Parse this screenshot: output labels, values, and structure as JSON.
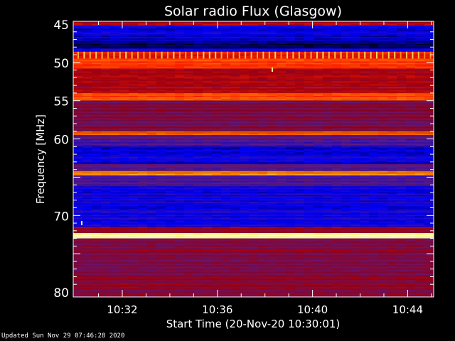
{
  "chart_data": {
    "type": "heatmap",
    "title": "Solar radio Flux (Glasgow)",
    "xlabel": "Start Time (20-Nov-20 10:30:01)",
    "ylabel": "Frequency [MHz]",
    "x_ticks": [
      "10:32",
      "10:36",
      "10:40",
      "10:44"
    ],
    "x_tick_minutes": [
      2,
      6,
      10,
      14
    ],
    "xlim_minutes": [
      0,
      15.2
    ],
    "y_ticks": [
      "45",
      "50",
      "55",
      "60",
      "70",
      "80"
    ],
    "y_tick_values": [
      45,
      50,
      55,
      60,
      70,
      80
    ],
    "ylim": [
      45,
      80
    ],
    "y_inverted": true,
    "colormap": [
      "#000000",
      "#0000ff",
      "#5a1a8c",
      "#a00010",
      "#ff2000",
      "#ff8000",
      "#ffff80",
      "#ffffff"
    ],
    "bands": [
      {
        "f": [
          44.6,
          45.2
        ],
        "level": 0.45
      },
      {
        "f": [
          45.2,
          47.2
        ],
        "level": 0.14
      },
      {
        "f": [
          47.2,
          48.2
        ],
        "level": 0.07
      },
      {
        "f": [
          48.2,
          48.6
        ],
        "level": 0.15
      },
      {
        "f": [
          48.6,
          49.5
        ],
        "level": 0.55,
        "spikes": true
      },
      {
        "f": [
          49.5,
          50.8
        ],
        "level": 0.62
      },
      {
        "f": [
          50.8,
          54.0
        ],
        "level": 0.44
      },
      {
        "f": [
          54.0,
          55.0
        ],
        "level": 0.63
      },
      {
        "f": [
          55.0,
          59.0
        ],
        "level": 0.36
      },
      {
        "f": [
          59.0,
          59.5
        ],
        "level": 0.65
      },
      {
        "f": [
          59.5,
          61.0
        ],
        "level": 0.28
      },
      {
        "f": [
          61.0,
          63.3
        ],
        "level": 0.15
      },
      {
        "f": [
          63.3,
          64.2
        ],
        "level": 0.3
      },
      {
        "f": [
          64.2,
          64.8
        ],
        "level": 0.72
      },
      {
        "f": [
          64.8,
          66.2
        ],
        "level": 0.26
      },
      {
        "f": [
          66.2,
          71.5
        ],
        "level": 0.16
      },
      {
        "f": [
          71.5,
          72.3
        ],
        "level": 0.42
      },
      {
        "f": [
          72.3,
          73.0
        ],
        "level": 0.9
      },
      {
        "f": [
          73.0,
          80.6
        ],
        "level": 0.38
      }
    ]
  },
  "footer": {
    "updated": "Updated Sun Nov 29 07:46:28 2020"
  }
}
